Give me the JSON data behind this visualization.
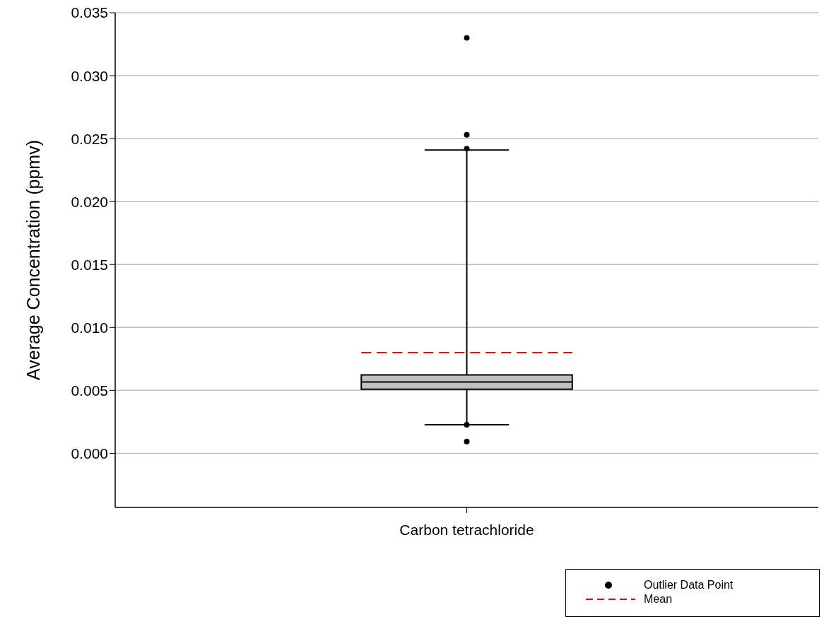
{
  "chart_data": {
    "type": "box",
    "ylabel": "Average Concentration (ppmv)",
    "categories": [
      "Carbon tetrachloride"
    ],
    "ylim": [
      -0.0043,
      0.035
    ],
    "yticks": [
      {
        "value": 0,
        "label": "0.000"
      },
      {
        "value": 0.005,
        "label": "0.005"
      },
      {
        "value": 0.01,
        "label": "0.010"
      },
      {
        "value": 0.015,
        "label": "0.015"
      },
      {
        "value": 0.02,
        "label": "0.020"
      },
      {
        "value": 0.025,
        "label": "0.025"
      },
      {
        "value": 0.03,
        "label": "0.030"
      },
      {
        "value": 0.035,
        "label": "0.035"
      }
    ],
    "grid": "y",
    "legend": "bottom right",
    "series": [
      {
        "type": "box",
        "color": "#c0c0c0",
        "boxes": [
          {
            "low": 0.00227,
            "q1": 0.00509,
            "median": 0.00566,
            "q3": 0.00623,
            "high": 0.0241
          }
        ]
      },
      {
        "type": "scatter",
        "name": "Outlier Data Point",
        "color": "#000000",
        "marker": "circle",
        "x": [
          "Carbon tetrachloride",
          "Carbon tetrachloride",
          "Carbon tetrachloride",
          "Carbon tetrachloride",
          "Carbon tetrachloride"
        ],
        "values": [
          0.033,
          0.0253,
          0.0242,
          0.00227,
          0.00094
        ]
      }
    ],
    "ref_lines": [
      {
        "axis": "y",
        "value": 0.008,
        "label": "Mean",
        "color": "#ff0000",
        "line_style": "dashed"
      }
    ]
  }
}
